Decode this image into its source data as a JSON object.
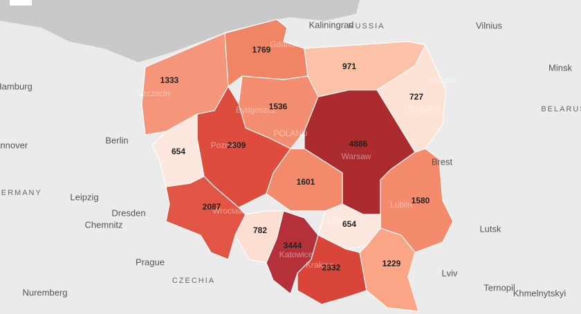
{
  "map": {
    "regions": [
      {
        "value": 1333,
        "color": "#f5957a"
      },
      {
        "value": 1769,
        "color": "#f08565"
      },
      {
        "value": 971,
        "color": "#fcc2a8"
      },
      {
        "value": 727,
        "color": "#fde2d6"
      },
      {
        "value": 1536,
        "color": "#f38e70"
      },
      {
        "value": 2309,
        "color": "#de4c3e"
      },
      {
        "value": 654,
        "color": "#fde7de"
      },
      {
        "value": 4886,
        "color": "#ab2b2e"
      },
      {
        "value": 1601,
        "color": "#f38a6b"
      },
      {
        "value": 1580,
        "color": "#f38b6c"
      },
      {
        "value": 2087,
        "color": "#e25443"
      },
      {
        "value": 782,
        "color": "#fddfd2"
      },
      {
        "value": 3444,
        "color": "#b5313a"
      },
      {
        "value": 654,
        "color": "#fde7de"
      },
      {
        "value": 2332,
        "color": "#d94639"
      },
      {
        "value": 1229,
        "color": "#f9a586"
      }
    ],
    "places": [
      "Kaliningrad",
      "RUSSIA",
      "Vilnius",
      "Minsk",
      "BELARUS",
      "Hamburg",
      "Berlin",
      "Hannover",
      "GERMANY",
      "Leipzig",
      "Dresden",
      "Chemnitz",
      "Prague",
      "CZECHIA",
      "Nuremberg",
      "Lutsk",
      "Lviv",
      "Ternopil",
      "Khmelnytskyi",
      "Brest",
      "Grodno",
      "Bialystok",
      "Gdansk",
      "Szczecin",
      "Bydgoszcz",
      "Poznan",
      "POLAND",
      "Warsaw",
      "Wroclaw",
      "Katowice",
      "Krakow",
      "Kielce",
      "Lublin"
    ]
  }
}
